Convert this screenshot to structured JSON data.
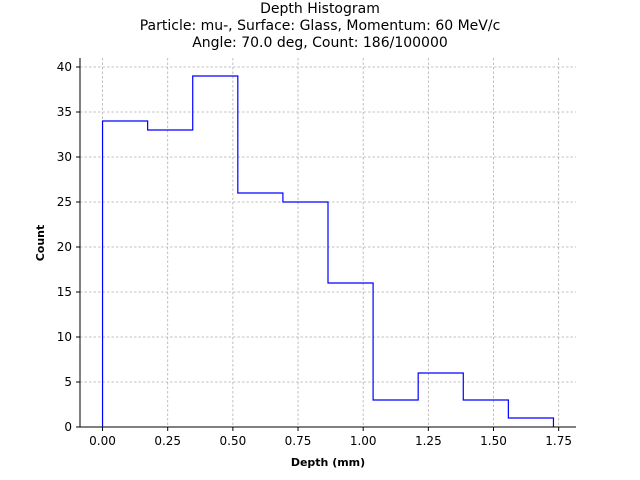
{
  "chart_data": {
    "type": "bar",
    "title_lines": [
      "Depth Histogram",
      "Particle: mu-, Surface: Glass, Momentum: 60 MeV/c",
      "Angle: 70.0 deg, Count: 186/100000"
    ],
    "xlabel": "Depth (mm)",
    "ylabel": "Count",
    "xlim": [
      -0.0865,
      1.8165
    ],
    "ylim": [
      0,
      41
    ],
    "x_ticks": [
      0.0,
      0.25,
      0.5,
      0.75,
      1.0,
      1.25,
      1.5,
      1.75
    ],
    "x_tick_labels": [
      "0.00",
      "0.25",
      "0.50",
      "0.75",
      "1.00",
      "1.25",
      "1.50",
      "1.75"
    ],
    "y_ticks": [
      0,
      5,
      10,
      15,
      20,
      25,
      30,
      35,
      40
    ],
    "y_tick_labels": [
      "0",
      "5",
      "10",
      "15",
      "20",
      "25",
      "30",
      "35",
      "40"
    ],
    "bin_edges": [
      0.0,
      0.173,
      0.346,
      0.519,
      0.692,
      0.865,
      1.038,
      1.211,
      1.384,
      1.557,
      1.73
    ],
    "counts": [
      34,
      33,
      39,
      26,
      25,
      16,
      3,
      6,
      3,
      1
    ],
    "histtype": "step",
    "line_color": "#0000ff",
    "grid": true,
    "grid_style": "dashed"
  }
}
